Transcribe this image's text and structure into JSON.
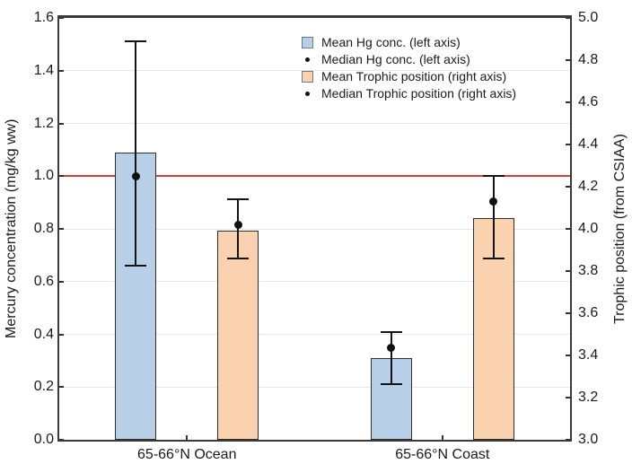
{
  "chart_data": {
    "type": "bar",
    "title": "",
    "categories": [
      "65-66°N Ocean",
      "65-66°N Coast"
    ],
    "series": [
      {
        "name": "Mean Hg conc. (left axis)",
        "axis": "left",
        "color": "#b8cfe8",
        "values": [
          1.09,
          0.31
        ],
        "medians": [
          1.0,
          0.35
        ],
        "median_name": "Median Hg conc. (left axis)",
        "error_low": [
          0.66,
          0.21
        ],
        "error_high": [
          1.51,
          0.41
        ]
      },
      {
        "name": "Mean Trophic position (right axis)",
        "axis": "right",
        "color": "#fad2af",
        "values": [
          3.99,
          4.05
        ],
        "medians": [
          4.02,
          4.13
        ],
        "median_name": "Median Trophic position (right axis)",
        "error_low": [
          3.86,
          3.86
        ],
        "error_high": [
          4.14,
          4.25
        ]
      }
    ],
    "legend": [
      {
        "type": "box",
        "color": "#b8cfe8",
        "label": "Mean Hg conc. (left axis)"
      },
      {
        "type": "dot",
        "color": "#111111",
        "label": "Median Hg conc. (left axis)"
      },
      {
        "type": "box",
        "color": "#fad2af",
        "label": "Mean Trophic position (right axis)"
      },
      {
        "type": "dot",
        "color": "#111111",
        "label": "Median Trophic position (right axis)"
      }
    ],
    "left_axis": {
      "label": "Mercury concentration (mg/kg ww)",
      "min": 0.0,
      "max": 1.6,
      "ticks": [
        "0.0",
        "0.2",
        "0.4",
        "0.6",
        "0.8",
        "1.0",
        "1.2",
        "1.4",
        "1.6"
      ]
    },
    "right_axis": {
      "label": "Trophic position (from CSIAA)",
      "min": 3.0,
      "max": 5.0,
      "ticks": [
        "3.0",
        "3.2",
        "3.4",
        "3.6",
        "3.8",
        "4.0",
        "4.2",
        "4.4",
        "4.6",
        "4.8",
        "5.0"
      ]
    },
    "reference_line": {
      "axis": "left",
      "value": 1.0,
      "color": "#d63c3c"
    },
    "grid": true,
    "legend_position": "top-center"
  }
}
